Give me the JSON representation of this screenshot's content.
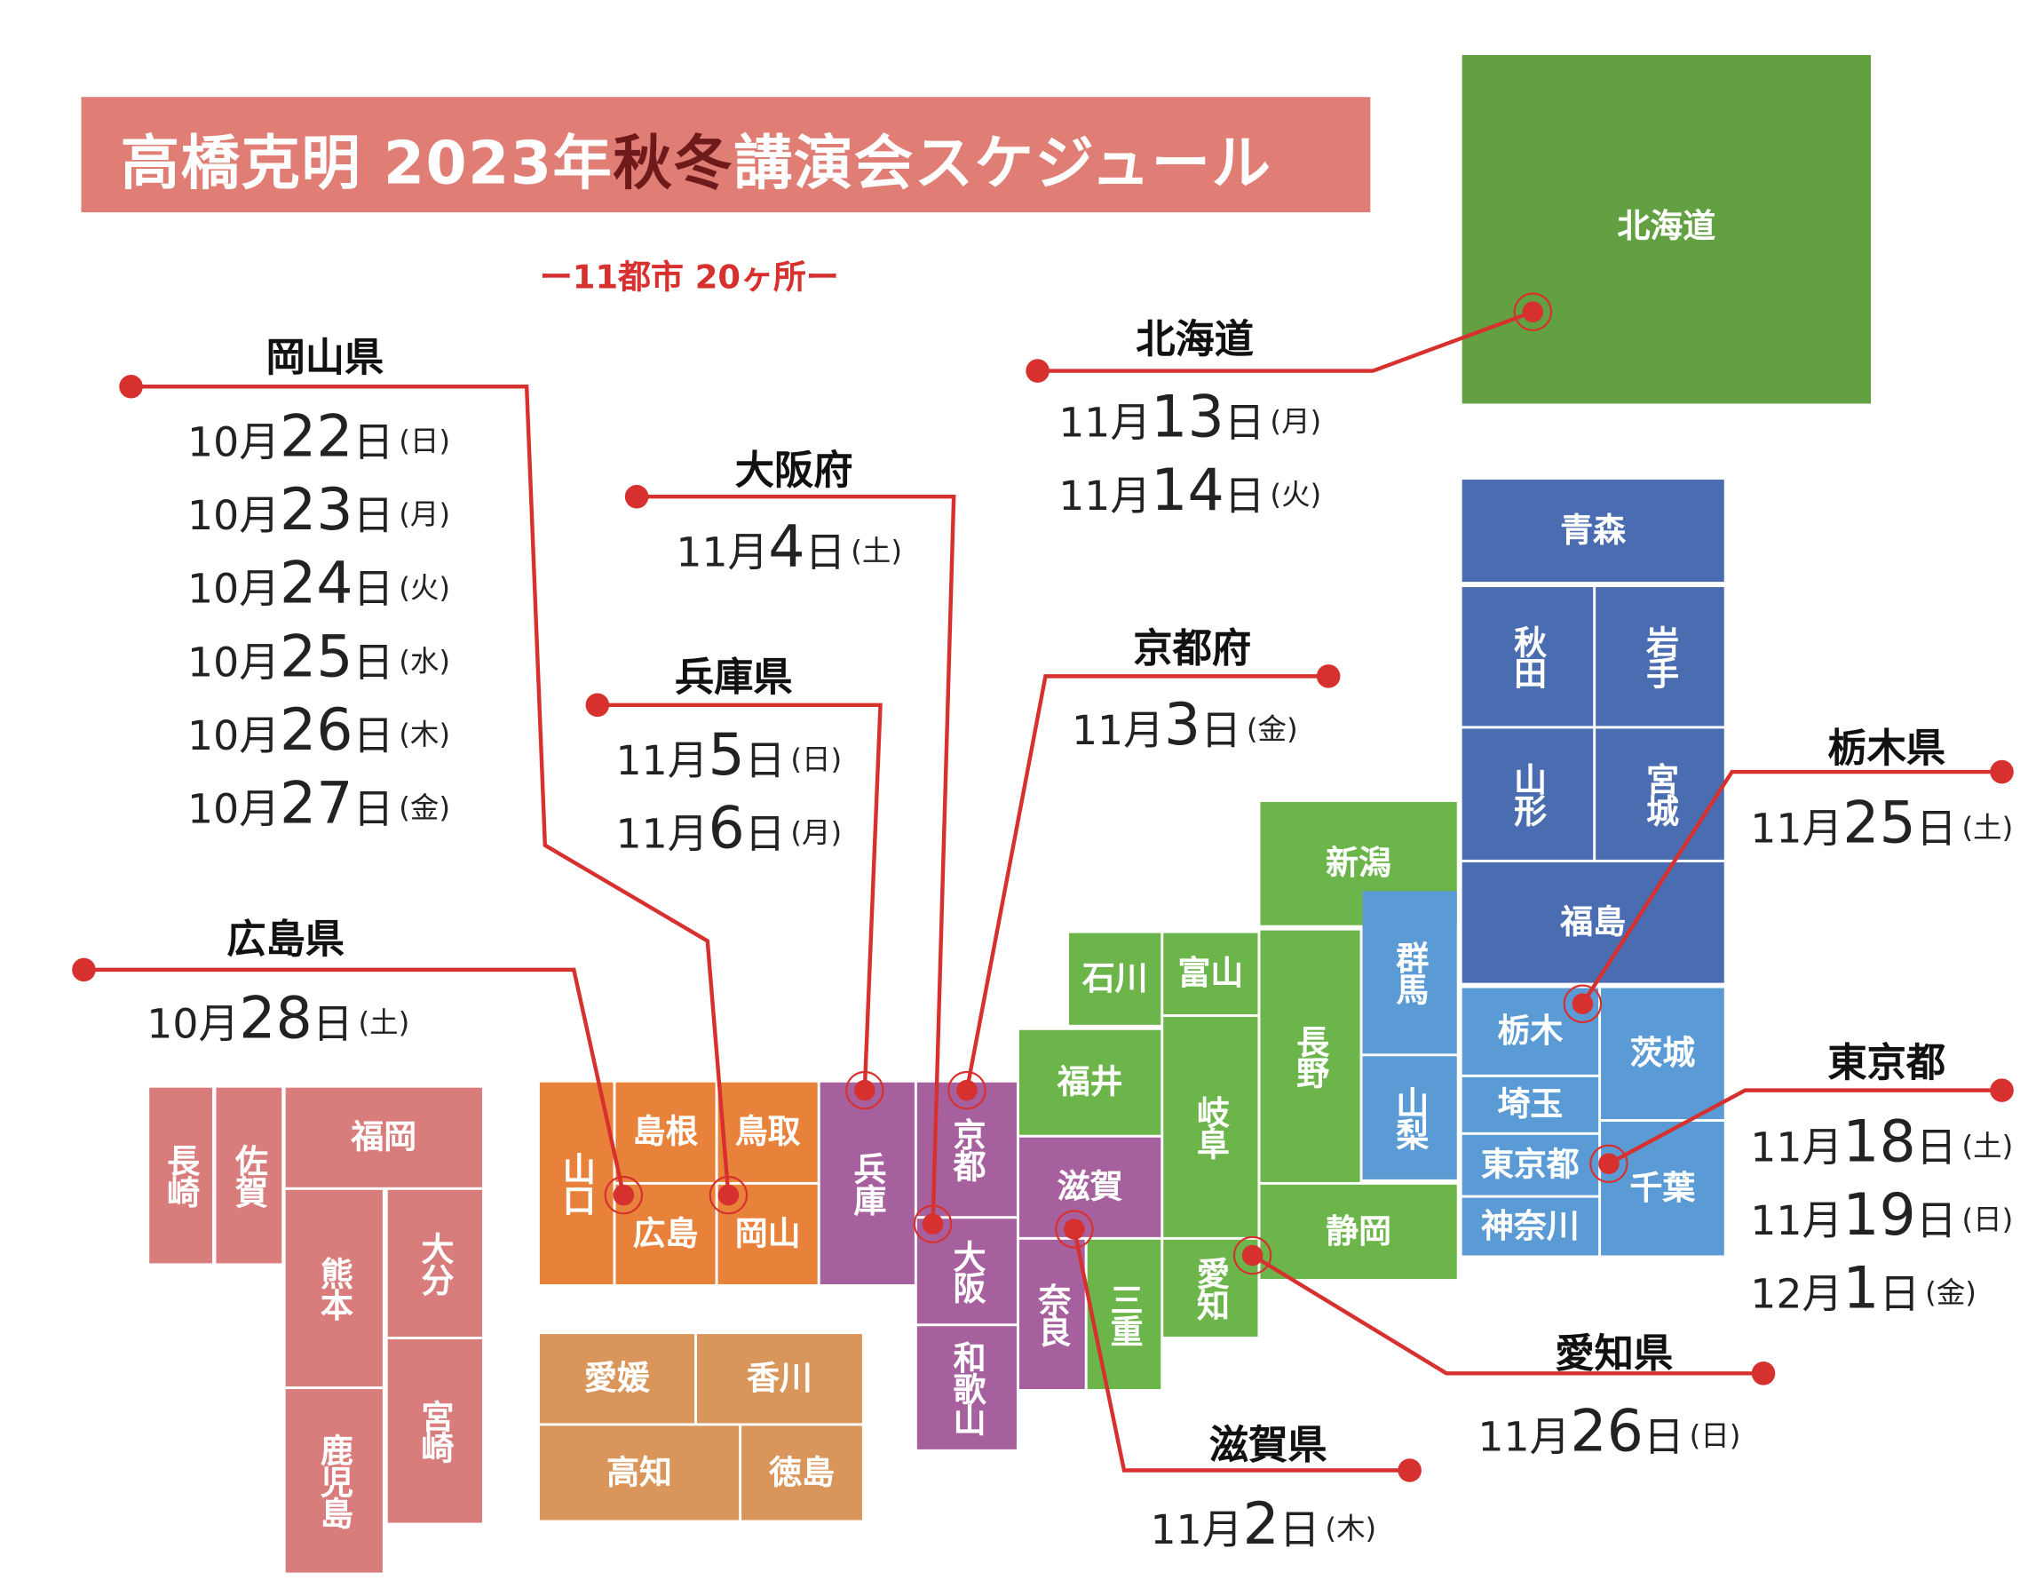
{
  "header": {
    "title_prefix": "高橋克明 2023年",
    "title_highlight": "秋冬",
    "title_suffix": "講演会スケジュール",
    "subtitle": "ー11都市 20ヶ所ー"
  },
  "map": {
    "hokkaido": "北海道",
    "aomori": "青森",
    "akita": "秋田",
    "iwate": "岩手",
    "yamagata": "山形",
    "miyagi": "宮城",
    "fukushima": "福島",
    "tochigi": "栃木",
    "ibaraki": "茨城",
    "saitama": "埼玉",
    "tokyo": "東京都",
    "chiba": "千葉",
    "kanagawa": "神奈川",
    "niigata": "新潟",
    "gunma": "群馬",
    "nagano": "長野",
    "yamanashi": "山梨",
    "shizuoka": "静岡",
    "ishikawa": "石川",
    "toyama": "富山",
    "fukui": "福井",
    "gifu": "岐阜",
    "aichi": "愛知",
    "shiga": "滋賀",
    "nara": "奈良",
    "mie": "三重",
    "kyoto": "京都",
    "osaka": "大阪",
    "wakayama": "和歌山",
    "hyogo": "兵庫",
    "shimane": "島根",
    "tottori": "鳥取",
    "yamaguchi": "山口",
    "hiroshima": "広島",
    "okayama": "岡山",
    "ehime": "愛媛",
    "kagawa": "香川",
    "kochi": "高知",
    "tokushima": "徳島",
    "nagasaki": "長崎",
    "saga": "佐賀",
    "fukuoka": "福岡",
    "kumamoto": "熊本",
    "oita": "大分",
    "kagoshima": "鹿児島",
    "miyazaki": "宮崎"
  },
  "venues": {
    "okayama": {
      "name": "岡山県",
      "dates": [
        {
          "m": "10月",
          "d": "22",
          "u": "日",
          "w": "(日)"
        },
        {
          "m": "10月",
          "d": "23",
          "u": "日",
          "w": "(月)"
        },
        {
          "m": "10月",
          "d": "24",
          "u": "日",
          "w": "(火)"
        },
        {
          "m": "10月",
          "d": "25",
          "u": "日",
          "w": "(水)"
        },
        {
          "m": "10月",
          "d": "26",
          "u": "日",
          "w": "(木)"
        },
        {
          "m": "10月",
          "d": "27",
          "u": "日",
          "w": "(金)"
        }
      ]
    },
    "hiroshima": {
      "name": "広島県",
      "dates": [
        {
          "m": "10月",
          "d": "28",
          "u": "日",
          "w": "(土)"
        }
      ]
    },
    "osaka": {
      "name": "大阪府",
      "dates": [
        {
          "m": "11月",
          "d": "4",
          "u": "日",
          "w": "(土)"
        }
      ]
    },
    "hyogo": {
      "name": "兵庫県",
      "dates": [
        {
          "m": "11月",
          "d": "5",
          "u": "日",
          "w": "(日)"
        },
        {
          "m": "11月",
          "d": "6",
          "u": "日",
          "w": "(月)"
        }
      ]
    },
    "hokkaido": {
      "name": "北海道",
      "dates": [
        {
          "m": "11月",
          "d": "13",
          "u": "日",
          "w": "(月)"
        },
        {
          "m": "11月",
          "d": "14",
          "u": "日",
          "w": "(火)"
        }
      ]
    },
    "kyoto": {
      "name": "京都府",
      "dates": [
        {
          "m": "11月",
          "d": "3",
          "u": "日",
          "w": "(金)"
        }
      ]
    },
    "tochigi": {
      "name": "栃木県",
      "dates": [
        {
          "m": "11月",
          "d": "25",
          "u": "日",
          "w": "(土)"
        }
      ]
    },
    "tokyo": {
      "name": "東京都",
      "dates": [
        {
          "m": "11月",
          "d": "18",
          "u": "日",
          "w": "(土)"
        },
        {
          "m": "11月",
          "d": "19",
          "u": "日",
          "w": "(日)"
        },
        {
          "m": "12月",
          "d": "1",
          "u": "日",
          "w": "(金)"
        }
      ]
    },
    "aichi": {
      "name": "愛知県",
      "dates": [
        {
          "m": "11月",
          "d": "26",
          "u": "日",
          "w": "(日)"
        }
      ]
    },
    "shiga": {
      "name": "滋賀県",
      "dates": [
        {
          "m": "11月",
          "d": "2",
          "u": "日",
          "w": "(木)"
        }
      ]
    }
  },
  "colors": {
    "accent_red": "#D7312F",
    "title_bg": "#E07E76",
    "kyushu": "#D97C7C",
    "chugoku": "#E8823A",
    "shikoku": "#D9955A",
    "kansai": "#A7609E",
    "chubu": "#6BB54A",
    "kanto": "#5A9BD5",
    "tohoku": "#4A6CB0",
    "hokkaido": "#63A042"
  }
}
